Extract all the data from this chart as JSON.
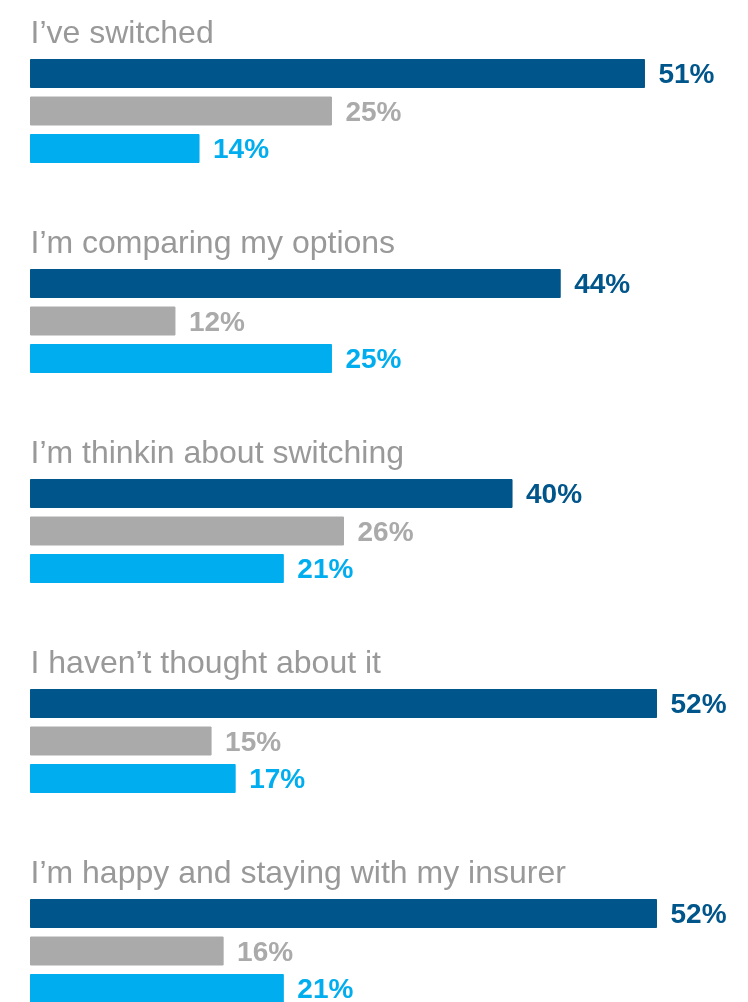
{
  "chart_data": {
    "type": "bar",
    "orientation": "horizontal",
    "categories": [
      "I’ve switched",
      "I’m comparing my options",
      "I’m thinkin about switching",
      "I haven’t thought about it",
      "I’m happy and staying with my insurer"
    ],
    "series": [
      {
        "color": "#00558a",
        "values": [
          51,
          44,
          40,
          52,
          52
        ],
        "value_labels": [
          "51%",
          "44%",
          "40%",
          "52%",
          "52%"
        ]
      },
      {
        "color": "#aaaaaa",
        "values": [
          25,
          12,
          26,
          15,
          16
        ],
        "value_labels": [
          "25%",
          "12%",
          "26%",
          "15%",
          "16%"
        ]
      },
      {
        "color": "#00aeef",
        "values": [
          14,
          25,
          21,
          17,
          21
        ],
        "value_labels": [
          "14%",
          "25%",
          "21%",
          "17%",
          "21%"
        ]
      }
    ]
  }
}
